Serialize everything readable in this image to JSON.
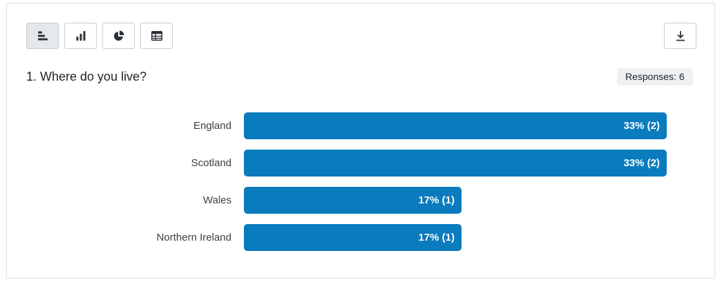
{
  "toolbar": {
    "buttons": [
      {
        "icon": "horizontal-bar-chart-icon",
        "active": true
      },
      {
        "icon": "vertical-bar-chart-icon",
        "active": false
      },
      {
        "icon": "pie-chart-icon",
        "active": false
      },
      {
        "icon": "table-icon",
        "active": false
      }
    ],
    "download_icon": "download-icon"
  },
  "question": {
    "title": "1. Where do you live?",
    "responses_label": "Responses: 6"
  },
  "colors": {
    "bar": "#0a7bbd",
    "active_button": "#e4e7eb",
    "badge_bg": "#eef0f2"
  },
  "chart_data": {
    "type": "bar",
    "orientation": "horizontal",
    "categories": [
      "England",
      "Scotland",
      "Wales",
      "Northern Ireland"
    ],
    "values": [
      33,
      33,
      17,
      17
    ],
    "counts": [
      2,
      2,
      1,
      1
    ],
    "value_labels": [
      "33% (2)",
      "33% (2)",
      "17% (1)",
      "17% (1)"
    ],
    "xlim": [
      0,
      33
    ],
    "grid": false
  }
}
